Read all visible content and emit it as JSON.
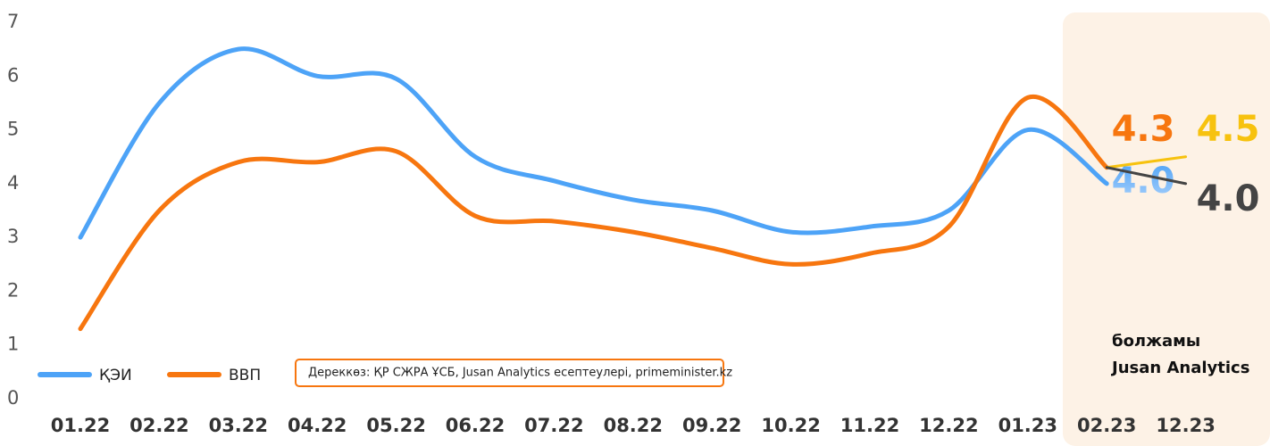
{
  "chart_data": {
    "type": "line",
    "categories": [
      "01.22",
      "02.22",
      "03.22",
      "04.22",
      "05.22",
      "06.22",
      "07.22",
      "08.22",
      "09.22",
      "10.22",
      "11.22",
      "12.22",
      "01.23",
      "02.23",
      "12.23"
    ],
    "series": [
      {
        "name": "ҚЭИ",
        "color": "#4da3f7",
        "values": [
          3.0,
          5.5,
          6.5,
          6.0,
          5.95,
          4.5,
          4.05,
          3.7,
          3.5,
          3.1,
          3.2,
          3.5,
          5.0,
          4.0,
          null
        ],
        "value_labels": [
          null,
          null,
          null,
          null,
          null,
          null,
          null,
          null,
          null,
          null,
          null,
          null,
          null,
          "4.0",
          null
        ]
      },
      {
        "name": "ВВП",
        "color": "#f7760f",
        "values": [
          1.3,
          3.5,
          4.4,
          4.4,
          4.6,
          3.4,
          3.3,
          3.1,
          2.8,
          2.5,
          2.7,
          3.2,
          5.6,
          4.3,
          null
        ],
        "value_labels": [
          null,
          null,
          null,
          null,
          null,
          null,
          null,
          null,
          null,
          null,
          null,
          null,
          null,
          "4.3",
          null
        ]
      },
      {
        "color": "#f7c20f",
        "values": [
          null,
          null,
          null,
          null,
          null,
          null,
          null,
          null,
          null,
          null,
          null,
          null,
          null,
          4.3,
          4.5
        ],
        "value_labels": [
          null,
          null,
          null,
          null,
          null,
          null,
          null,
          null,
          null,
          null,
          null,
          null,
          null,
          null,
          "4.5"
        ]
      },
      {
        "color": "#444444",
        "values": [
          null,
          null,
          null,
          null,
          null,
          null,
          null,
          null,
          null,
          null,
          null,
          null,
          null,
          4.3,
          4.0
        ],
        "value_labels": [
          null,
          null,
          null,
          null,
          null,
          null,
          null,
          null,
          null,
          null,
          null,
          null,
          null,
          null,
          "4.0"
        ]
      }
    ],
    "ylim": [
      0,
      7
    ],
    "yticks": [
      0,
      1,
      2,
      3,
      4,
      5,
      6,
      7
    ],
    "grid": false,
    "annotations": [
      "Дереккөз: ҚР СЖРА ҰСБ, Jusan Analytics есептеулері, primeminister.kz",
      "болжамы",
      "Jusan Analytics"
    ]
  }
}
